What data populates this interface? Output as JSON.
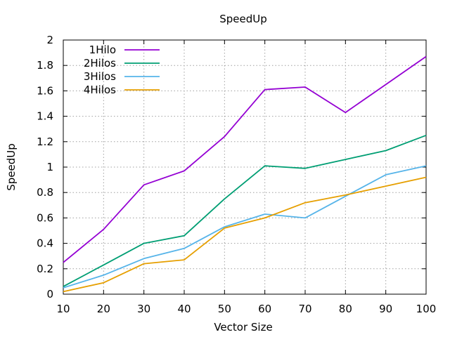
{
  "chart_data": {
    "type": "line",
    "title": "SpeedUp",
    "xlabel": "Vector Size",
    "ylabel": "SpeedUp",
    "xlim": [
      10,
      100
    ],
    "ylim": [
      0,
      2
    ],
    "x_ticks": [
      "10",
      "20",
      "30",
      "40",
      "50",
      "60",
      "70",
      "80",
      "90",
      "100"
    ],
    "y_ticks": [
      "0",
      "0.2",
      "0.4",
      "0.6",
      "0.8",
      "1",
      "1.2",
      "1.4",
      "1.6",
      "1.8",
      "2"
    ],
    "grid": true,
    "legend_position": "top-left",
    "x": [
      10,
      20,
      30,
      40,
      50,
      60,
      70,
      80,
      90,
      100
    ],
    "series": [
      {
        "name": "1Hilo",
        "color": "#9400d3",
        "values": [
          0.25,
          0.51,
          0.86,
          0.97,
          1.24,
          1.61,
          1.63,
          1.43,
          1.65,
          1.87
        ]
      },
      {
        "name": "2Hilos",
        "color": "#009e73",
        "values": [
          0.06,
          0.23,
          0.4,
          0.46,
          0.75,
          1.01,
          0.99,
          1.06,
          1.13,
          1.25
        ]
      },
      {
        "name": "3Hilos",
        "color": "#56b4e9",
        "values": [
          0.05,
          0.15,
          0.28,
          0.36,
          0.53,
          0.63,
          0.6,
          0.77,
          0.94,
          1.01
        ]
      },
      {
        "name": "4Hilos",
        "color": "#e69f00",
        "values": [
          0.02,
          0.09,
          0.24,
          0.27,
          0.52,
          0.6,
          0.72,
          0.78,
          0.85,
          0.92
        ]
      }
    ]
  }
}
